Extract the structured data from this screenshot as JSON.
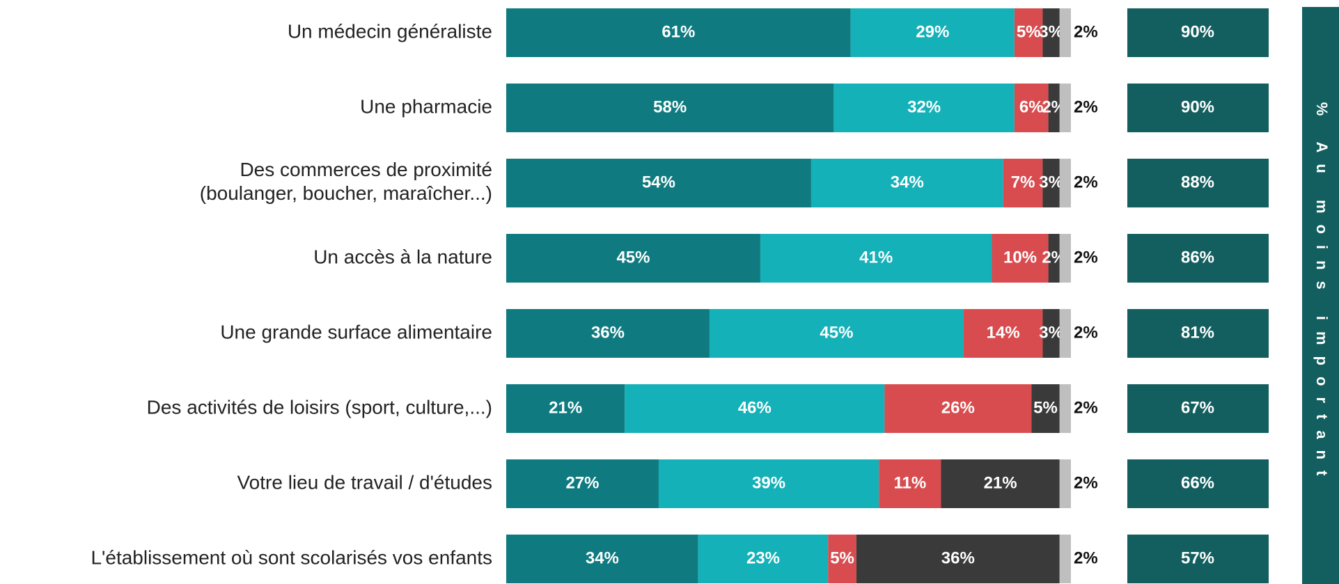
{
  "chart_data": {
    "type": "stacked-bar-horizontal",
    "categories": [
      "Un médecin généraliste",
      "Une pharmacie",
      "Des commerces de proximité\n(boulanger, boucher, maraîcher...)",
      "Un accès à la nature",
      "Une grande surface alimentaire",
      "Des activités de loisirs (sport, culture,...)",
      "Votre lieu de travail / d'études",
      "L'établissement où sont scolarisés vos enfants"
    ],
    "xlim": [
      0,
      100
    ],
    "series": [
      {
        "color": "#0f7b80",
        "values": [
          61,
          58,
          54,
          45,
          36,
          21,
          27,
          34
        ],
        "value_labels": [
          "61%",
          "58%",
          "54%",
          "45%",
          "36%",
          "21%",
          "27%",
          "34%"
        ]
      },
      {
        "color": "#14b1b8",
        "values": [
          29,
          32,
          34,
          41,
          45,
          46,
          39,
          23
        ],
        "value_labels": [
          "29%",
          "32%",
          "34%",
          "41%",
          "45%",
          "46%",
          "39%",
          "23%"
        ]
      },
      {
        "color": "#d84c4f",
        "values": [
          5,
          6,
          7,
          10,
          14,
          26,
          11,
          5
        ],
        "value_labels": [
          "5%",
          "6%",
          "7%",
          "10%",
          "14%",
          "26%",
          "11%",
          "5%"
        ]
      },
      {
        "color": "#3a3a3a",
        "values": [
          3,
          2,
          3,
          2,
          3,
          5,
          21,
          36
        ],
        "value_labels": [
          "3%",
          "2%",
          "3%",
          "2%",
          "3%",
          "5%",
          "21%",
          "36%"
        ]
      },
      {
        "color": "#bfbfbf",
        "values": [
          2,
          2,
          2,
          2,
          2,
          2,
          2,
          2
        ],
        "value_labels": [
          "2%",
          "2%",
          "2%",
          "2%",
          "2%",
          "2%",
          "2%",
          "2%"
        ]
      }
    ],
    "totals": {
      "title": "% Au moins important",
      "color": "#135e5e",
      "values": [
        90,
        90,
        88,
        86,
        81,
        67,
        66,
        57
      ],
      "value_labels": [
        "90%",
        "90%",
        "88%",
        "86%",
        "81%",
        "67%",
        "66%",
        "57%"
      ]
    }
  }
}
